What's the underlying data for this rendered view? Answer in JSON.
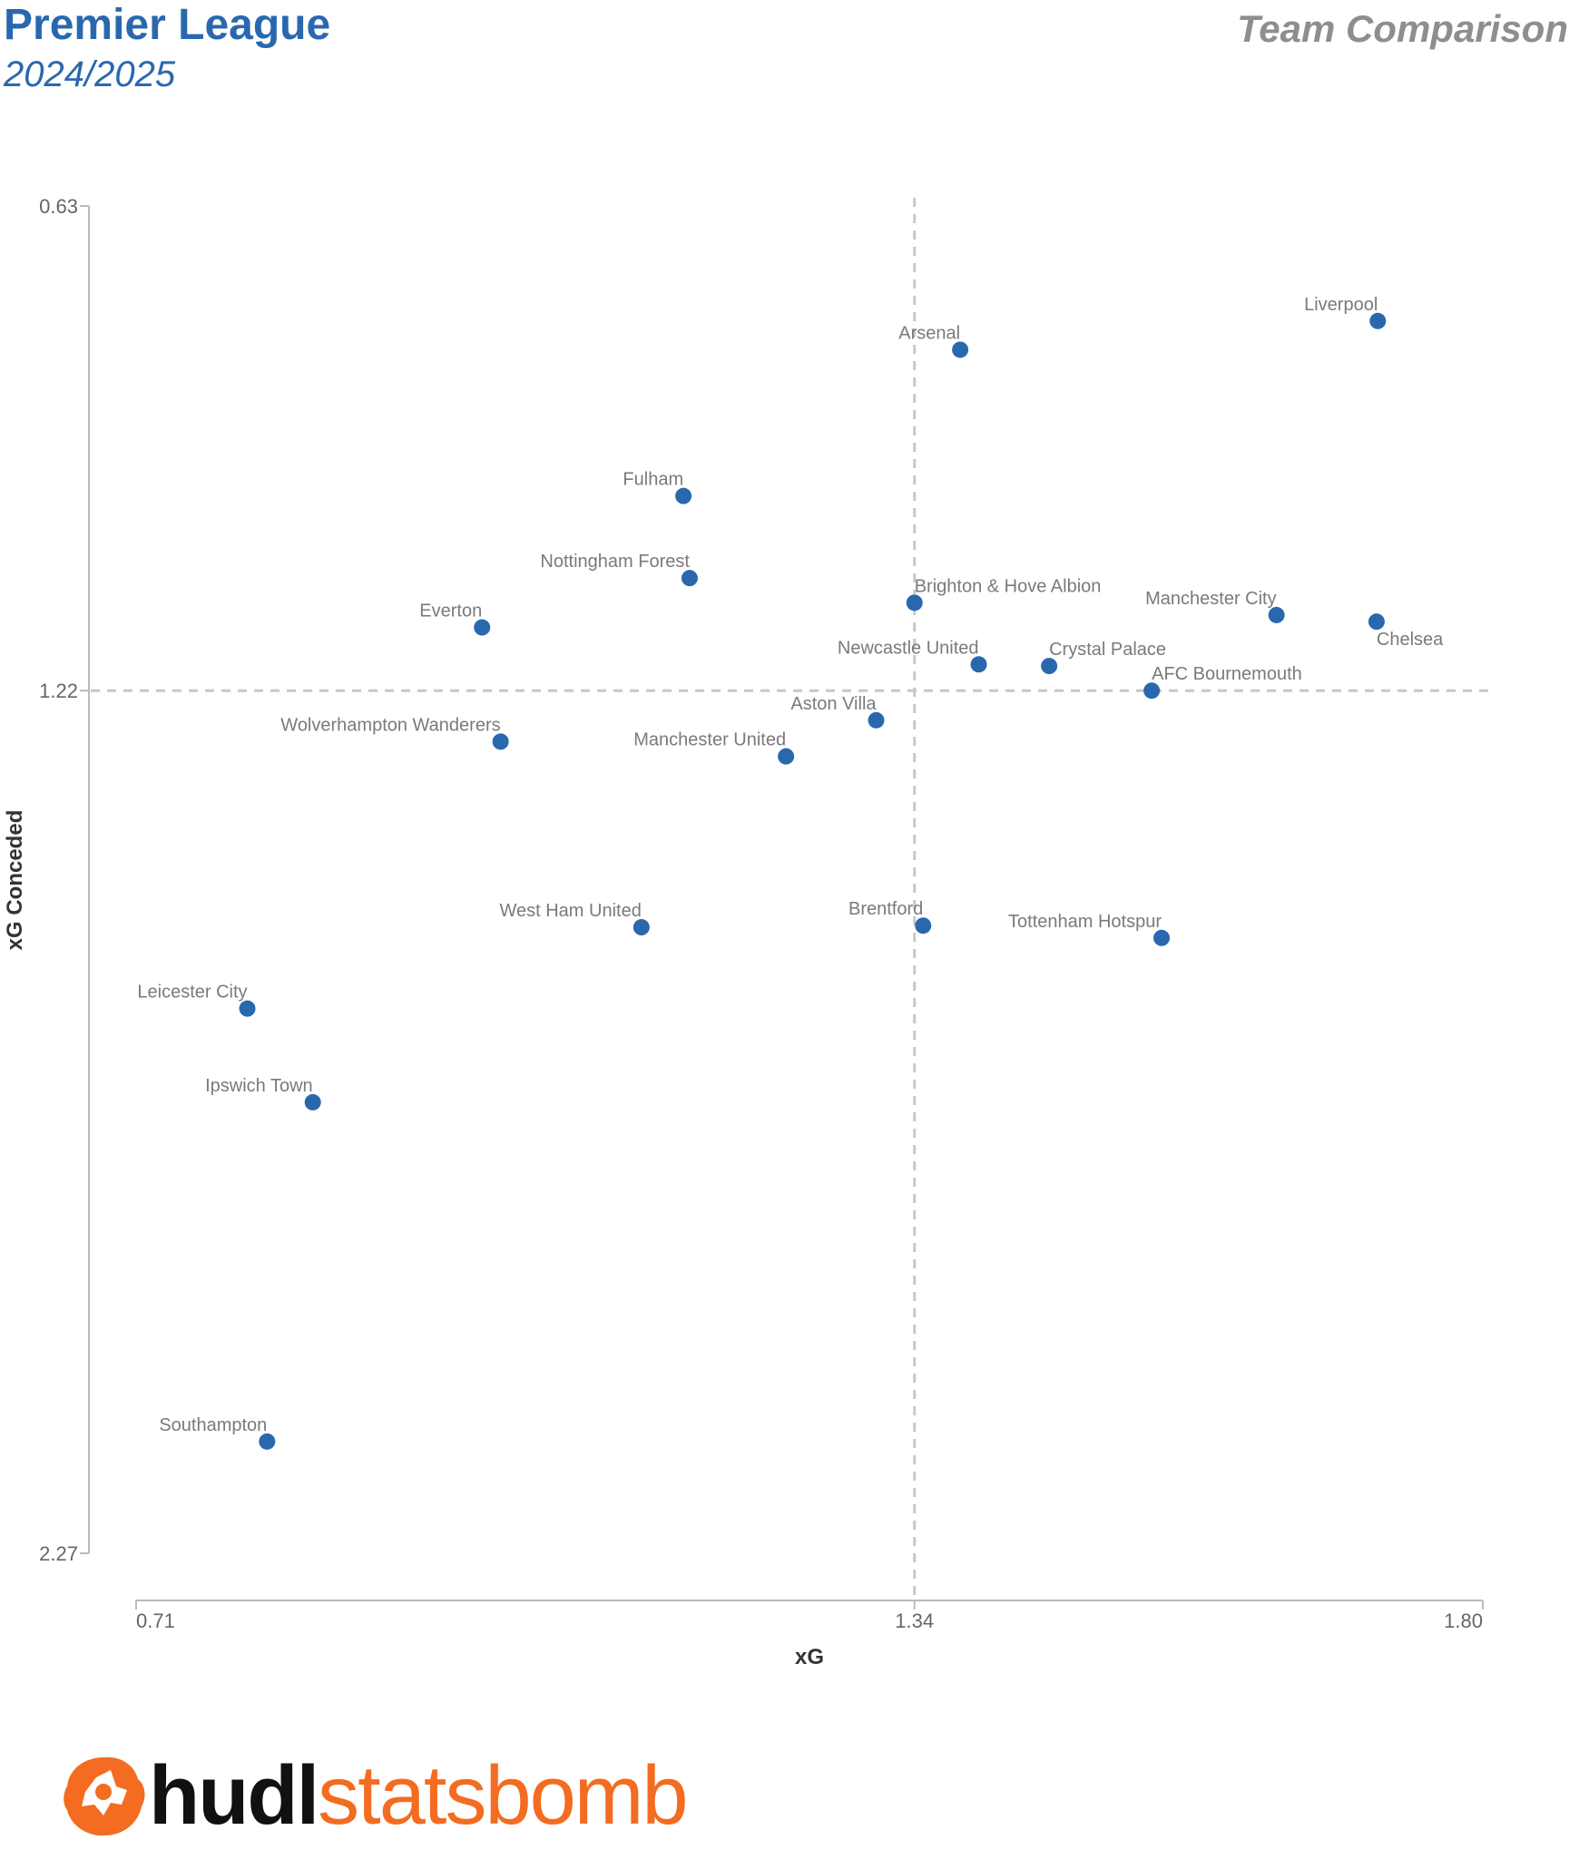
{
  "header": {
    "title": "Premier League",
    "subtitle": "2024/2025",
    "right_title": "Team Comparison"
  },
  "logo": {
    "part1": "hudl",
    "part2": "statsbomb"
  },
  "colors": {
    "title": "#2a68ae",
    "point": "#2a68ae",
    "label": "#7a7a7a",
    "axis": "#bbbbbb",
    "ref_line": "#c8c8c8",
    "logo_orange": "#f36c21"
  },
  "chart_data": {
    "type": "scatter",
    "xlabel": "xG",
    "ylabel": "xG Conceded",
    "xlim": [
      0.71,
      1.8
    ],
    "ylim": [
      0.63,
      2.27
    ],
    "y_inverted": true,
    "x_ticks": [
      "0.71",
      "1.34",
      "1.80"
    ],
    "y_ticks": [
      "0.63",
      "1.22",
      "2.27"
    ],
    "reference_lines": {
      "x": 1.34,
      "y": 1.22
    },
    "grid": false,
    "points": [
      {
        "team": "Liverpool",
        "xg": 1.715,
        "xga": 0.77
      },
      {
        "team": "Arsenal",
        "xg": 1.377,
        "xga": 0.805
      },
      {
        "team": "Fulham",
        "xg": 1.153,
        "xga": 0.983
      },
      {
        "team": "Nottingham Forest",
        "xg": 1.158,
        "xga": 1.083
      },
      {
        "team": "Everton",
        "xg": 0.99,
        "xga": 1.143
      },
      {
        "team": "Brighton & Hove Albion",
        "xg": 1.34,
        "xga": 1.113
      },
      {
        "team": "Manchester City",
        "xg": 1.633,
        "xga": 1.128
      },
      {
        "team": "Chelsea",
        "xg": 1.714,
        "xga": 1.136
      },
      {
        "team": "Newcastle United",
        "xg": 1.392,
        "xga": 1.188
      },
      {
        "team": "Crystal Palace",
        "xg": 1.449,
        "xga": 1.19
      },
      {
        "team": "AFC Bournemouth",
        "xg": 1.532,
        "xga": 1.22
      },
      {
        "team": "Aston Villa",
        "xg": 1.309,
        "xga": 1.256
      },
      {
        "team": "Wolverhampton Wanderers",
        "xg": 1.005,
        "xga": 1.282
      },
      {
        "team": "Manchester United",
        "xg": 1.236,
        "xga": 1.3
      },
      {
        "team": "West Ham United",
        "xg": 1.119,
        "xga": 1.508
      },
      {
        "team": "Brentford",
        "xg": 1.347,
        "xga": 1.506
      },
      {
        "team": "Tottenham Hotspur",
        "xg": 1.54,
        "xga": 1.521
      },
      {
        "team": "Leicester City",
        "xg": 0.8,
        "xga": 1.607
      },
      {
        "team": "Ipswich Town",
        "xg": 0.853,
        "xga": 1.721
      },
      {
        "team": "Southampton",
        "xg": 0.816,
        "xga": 2.134
      }
    ]
  }
}
